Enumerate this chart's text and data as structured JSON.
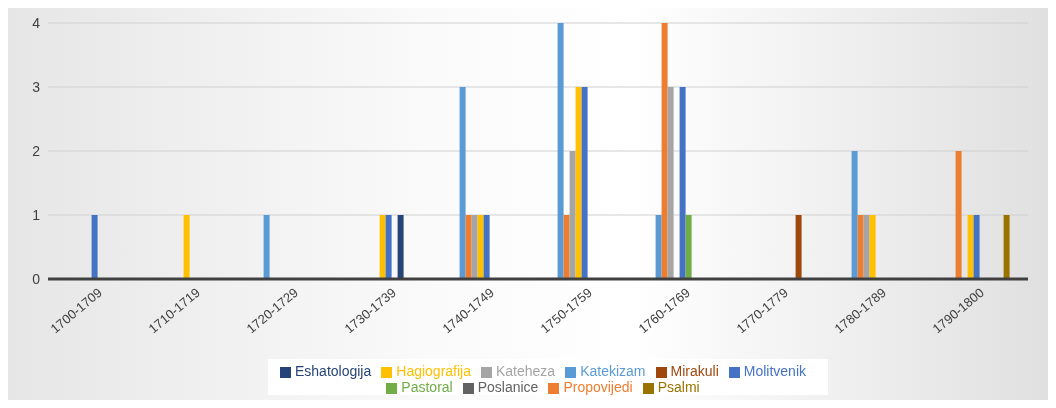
{
  "chart_data": {
    "type": "bar",
    "categories": [
      "1700-1709",
      "1710-1719",
      "1720-1729",
      "1730-1739",
      "1740-1749",
      "1750-1759",
      "1760-1769",
      "1770-1779",
      "1780-1789",
      "1790-1800"
    ],
    "series": [
      {
        "name": "Katekizam",
        "color": "#5b9bd5",
        "values": [
          null,
          null,
          1,
          null,
          3,
          4,
          1,
          null,
          2,
          null
        ]
      },
      {
        "name": "Propovijedi",
        "color": "#ed7d31",
        "values": [
          null,
          null,
          null,
          null,
          1,
          1,
          4,
          null,
          1,
          2
        ]
      },
      {
        "name": "Kateheza",
        "color": "#a5a5a5",
        "values": [
          null,
          null,
          null,
          null,
          1,
          2,
          3,
          null,
          1,
          null
        ]
      },
      {
        "name": "Hagiografija",
        "color": "#ffc000",
        "values": [
          null,
          1,
          null,
          1,
          1,
          3,
          null,
          null,
          1,
          1
        ]
      },
      {
        "name": "Molitvenik",
        "color": "#4472c4",
        "values": [
          1,
          null,
          null,
          1,
          1,
          3,
          3,
          null,
          null,
          1
        ]
      },
      {
        "name": "Pastoral",
        "color": "#70ad47",
        "values": [
          null,
          null,
          null,
          null,
          null,
          null,
          1,
          null,
          null,
          null
        ]
      },
      {
        "name": "Eshatologija",
        "color": "#264478",
        "values": [
          null,
          null,
          null,
          1,
          null,
          null,
          null,
          null,
          null,
          null
        ]
      },
      {
        "name": "Mirakuli",
        "color": "#9e480e",
        "values": [
          null,
          null,
          null,
          null,
          null,
          null,
          null,
          1,
          null,
          null
        ]
      },
      {
        "name": "Poslanice",
        "color": "#636363",
        "values": [
          null,
          null,
          null,
          null,
          null,
          null,
          null,
          null,
          null,
          null
        ]
      },
      {
        "name": "Psalmi",
        "color": "#997300",
        "values": [
          null,
          null,
          null,
          null,
          null,
          null,
          null,
          null,
          null,
          1
        ]
      }
    ],
    "ylim": [
      0,
      4
    ],
    "yticks": [
      0,
      1,
      2,
      3,
      4
    ],
    "grid": "y",
    "legend": "bottom"
  }
}
